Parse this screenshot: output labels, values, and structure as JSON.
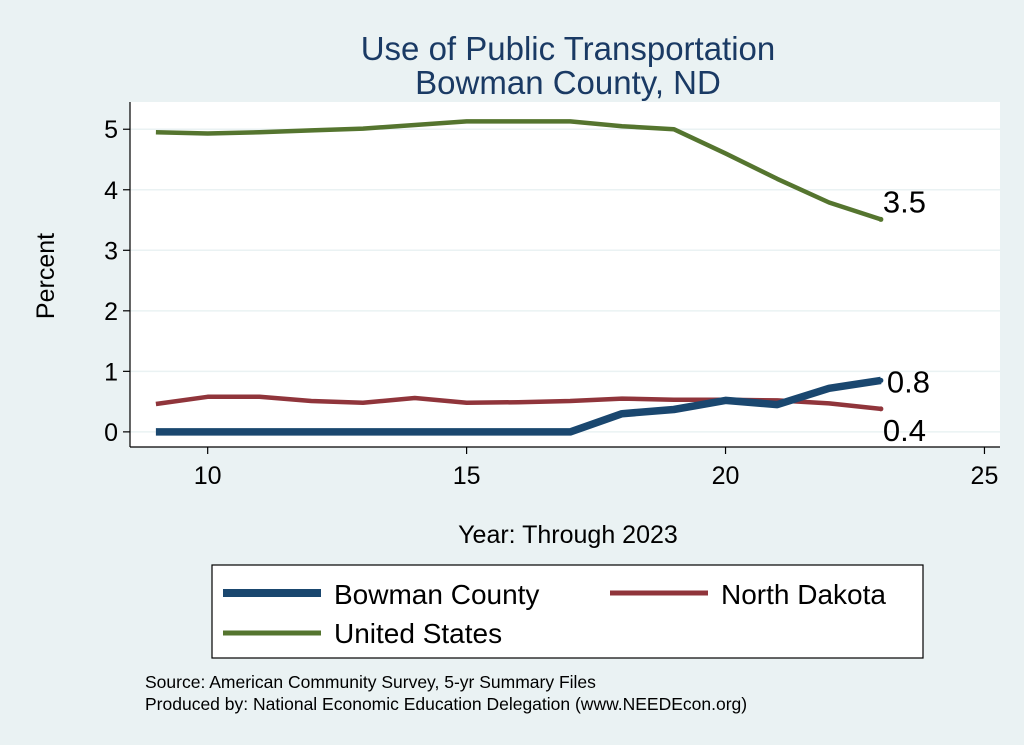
{
  "chart_data": {
    "type": "line",
    "title": [
      "Use of Public Transportation",
      "Bowman County, ND"
    ],
    "xlabel": "Year: Through 2023",
    "ylabel": "Percent",
    "xlim": [
      8.5,
      25.3
    ],
    "ylim": [
      -0.25,
      5.45
    ],
    "xticks": [
      10,
      15,
      20,
      25
    ],
    "yticks": [
      0,
      1,
      2,
      3,
      4,
      5
    ],
    "grid": true,
    "legend_position": "bottom",
    "series": [
      {
        "name": "Bowman County",
        "color": "#1a476f",
        "x": [
          9,
          10,
          11,
          12,
          13,
          14,
          15,
          16,
          17,
          18,
          19,
          20,
          21,
          22,
          23
        ],
        "y": [
          0,
          0,
          0,
          0,
          0,
          0,
          0,
          0,
          0,
          0.3,
          0.37,
          0.52,
          0.45,
          0.72,
          0.85
        ],
        "end_label": "0.8"
      },
      {
        "name": "North Dakota",
        "color": "#90353b",
        "x": [
          9,
          10,
          11,
          12,
          13,
          14,
          15,
          16,
          17,
          18,
          19,
          20,
          21,
          22,
          23
        ],
        "y": [
          0.46,
          0.58,
          0.58,
          0.51,
          0.48,
          0.56,
          0.48,
          0.49,
          0.51,
          0.55,
          0.53,
          0.53,
          0.52,
          0.47,
          0.38
        ],
        "end_label": "0.4"
      },
      {
        "name": "United States",
        "color": "#55752f",
        "x": [
          9,
          10,
          11,
          12,
          13,
          14,
          15,
          16,
          17,
          18,
          19,
          20,
          21,
          22,
          23
        ],
        "y": [
          4.95,
          4.93,
          4.95,
          4.98,
          5.01,
          5.07,
          5.13,
          5.13,
          5.13,
          5.05,
          5.0,
          4.6,
          4.18,
          3.79,
          3.51
        ],
        "end_label": "3.5"
      }
    ]
  },
  "source": {
    "line1": "Source: American Community Survey, 5-yr Summary Files",
    "line2": "Produced by: National Economic Education Delegation (www.NEEDEcon.org)"
  }
}
